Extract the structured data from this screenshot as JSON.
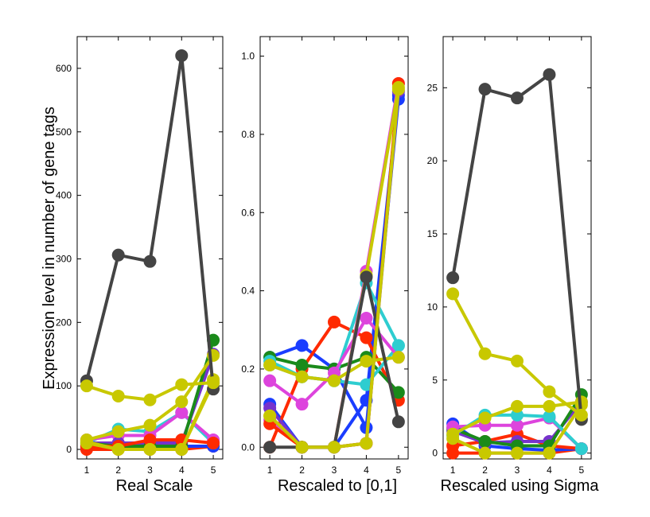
{
  "ylabel": "Expression level in number of gene tags",
  "chart_data": [
    {
      "type": "line",
      "xlabel": "Real Scale",
      "x": [
        1,
        2,
        3,
        4,
        5
      ],
      "xlim": [
        0.7,
        5.3
      ],
      "ylim": [
        -15,
        650
      ],
      "yticks": [
        0,
        100,
        200,
        300,
        400,
        500,
        600
      ],
      "ytick_labels": [
        "0",
        "100",
        "200",
        "300",
        "400",
        "500",
        "600"
      ],
      "series": [
        {
          "color": "#ff2a00",
          "values": [
            0,
            0,
            0,
            0,
            5
          ]
        },
        {
          "color": "#1a3dff",
          "values": [
            5,
            10,
            5,
            5,
            5
          ]
        },
        {
          "color": "#2ecdd0",
          "values": [
            10,
            32,
            28,
            58,
            10
          ]
        },
        {
          "color": "#dd44dd",
          "values": [
            15,
            22,
            22,
            58,
            15
          ]
        },
        {
          "color": "#7733cc",
          "values": [
            10,
            10,
            10,
            10,
            150
          ]
        },
        {
          "color": "#1a8a1a",
          "values": [
            10,
            5,
            5,
            5,
            172
          ]
        },
        {
          "color": "#ff2a00",
          "values": [
            5,
            5,
            15,
            15,
            10
          ]
        },
        {
          "color": "#c8c800",
          "values": [
            15,
            28,
            38,
            75,
            148
          ]
        },
        {
          "color": "#c8c800",
          "values": [
            10,
            0,
            0,
            0,
            110
          ]
        },
        {
          "color": "#c8c800",
          "values": [
            12,
            0,
            0,
            0,
            105
          ]
        },
        {
          "color": "#444444",
          "values": [
            108,
            306,
            296,
            620,
            95
          ]
        },
        {
          "color": "#c8c800",
          "values": [
            100,
            84,
            78,
            102,
            105
          ]
        }
      ]
    },
    {
      "type": "line",
      "xlabel": "Rescaled to [0,1]",
      "x": [
        1,
        2,
        3,
        4,
        5
      ],
      "xlim": [
        0.7,
        5.3
      ],
      "ylim": [
        -0.03,
        1.05
      ],
      "yticks": [
        0.0,
        0.2,
        0.4,
        0.6,
        0.8,
        1.0
      ],
      "ytick_labels": [
        "0.0",
        "0.2",
        "0.4",
        "0.6",
        "0.8",
        "1.0"
      ],
      "series": [
        {
          "color": "#1a3dff",
          "values": [
            0.23,
            0.26,
            0.2,
            0.05,
            0.89
          ]
        },
        {
          "color": "#1a3dff",
          "values": [
            0.11,
            0.0,
            0.0,
            0.12,
            0.9
          ]
        },
        {
          "color": "#ff2a00",
          "values": [
            0.0,
            0.2,
            0.32,
            0.28,
            0.12
          ]
        },
        {
          "color": "#1a8a1a",
          "values": [
            0.23,
            0.21,
            0.2,
            0.23,
            0.14
          ]
        },
        {
          "color": "#2ecdd0",
          "values": [
            0.22,
            0.18,
            0.17,
            0.42,
            0.26
          ]
        },
        {
          "color": "#2ecdd0",
          "values": [
            0.21,
            0.18,
            0.17,
            0.16,
            0.26
          ]
        },
        {
          "color": "#dd44dd",
          "values": [
            0.17,
            0.11,
            0.19,
            0.33,
            0.23
          ]
        },
        {
          "color": "#7733cc",
          "values": [
            0.1,
            0.0,
            0.0,
            0.01,
            0.91
          ]
        },
        {
          "color": "#dd44dd",
          "values": [
            0.07,
            0.0,
            0.0,
            0.45,
            0.93
          ]
        },
        {
          "color": "#ff2a00",
          "values": [
            0.06,
            0.0,
            0.0,
            0.01,
            0.93
          ]
        },
        {
          "color": "#c8c800",
          "values": [
            0.08,
            0.0,
            0.0,
            0.44,
            0.92
          ]
        },
        {
          "color": "#c8c800",
          "values": [
            0.21,
            0.18,
            0.17,
            0.22,
            0.23
          ]
        },
        {
          "color": "#444444",
          "values": [
            0.0,
            0.0,
            0.0,
            0.435,
            0.065
          ]
        },
        {
          "color": "#c8c800",
          "values": [
            0.08,
            0.0,
            0.0,
            0.01,
            0.915
          ]
        }
      ]
    },
    {
      "type": "line",
      "xlabel": "Rescaled using Sigma",
      "x": [
        1,
        2,
        3,
        4,
        5
      ],
      "xlim": [
        0.7,
        5.3
      ],
      "ylim": [
        -0.4,
        28.5
      ],
      "yticks": [
        0,
        5,
        10,
        15,
        20,
        25
      ],
      "ytick_labels": [
        "0",
        "5",
        "10",
        "15",
        "20",
        "25"
      ],
      "series": [
        {
          "color": "#ff2a00",
          "values": [
            0,
            0,
            0,
            0,
            0.3
          ]
        },
        {
          "color": "#1a3dff",
          "values": [
            2.0,
            0.5,
            0.3,
            0.2,
            0.3
          ]
        },
        {
          "color": "#ff2a00",
          "values": [
            0.5,
            0.8,
            1.3,
            0.5,
            0.3
          ]
        },
        {
          "color": "#7733cc",
          "values": [
            1.5,
            0.7,
            0.8,
            0.8,
            3.5
          ]
        },
        {
          "color": "#1a8a1a",
          "values": [
            1.7,
            0.8,
            0.5,
            0.5,
            4.0
          ]
        },
        {
          "color": "#dd44dd",
          "values": [
            1.8,
            1.9,
            1.9,
            2.4,
            0.3
          ]
        },
        {
          "color": "#2ecdd0",
          "values": [
            1.2,
            2.6,
            2.6,
            2.5,
            0.3
          ]
        },
        {
          "color": "#c8c800",
          "values": [
            1.3,
            2.4,
            3.2,
            3.2,
            3.5
          ]
        },
        {
          "color": "#c8c800",
          "values": [
            1.0,
            0,
            0,
            0,
            3.3
          ]
        },
        {
          "color": "#444444",
          "values": [
            12.0,
            24.9,
            24.3,
            25.9,
            2.3
          ]
        },
        {
          "color": "#c8c800",
          "values": [
            10.9,
            6.8,
            6.3,
            4.2,
            2.6
          ]
        }
      ]
    }
  ]
}
